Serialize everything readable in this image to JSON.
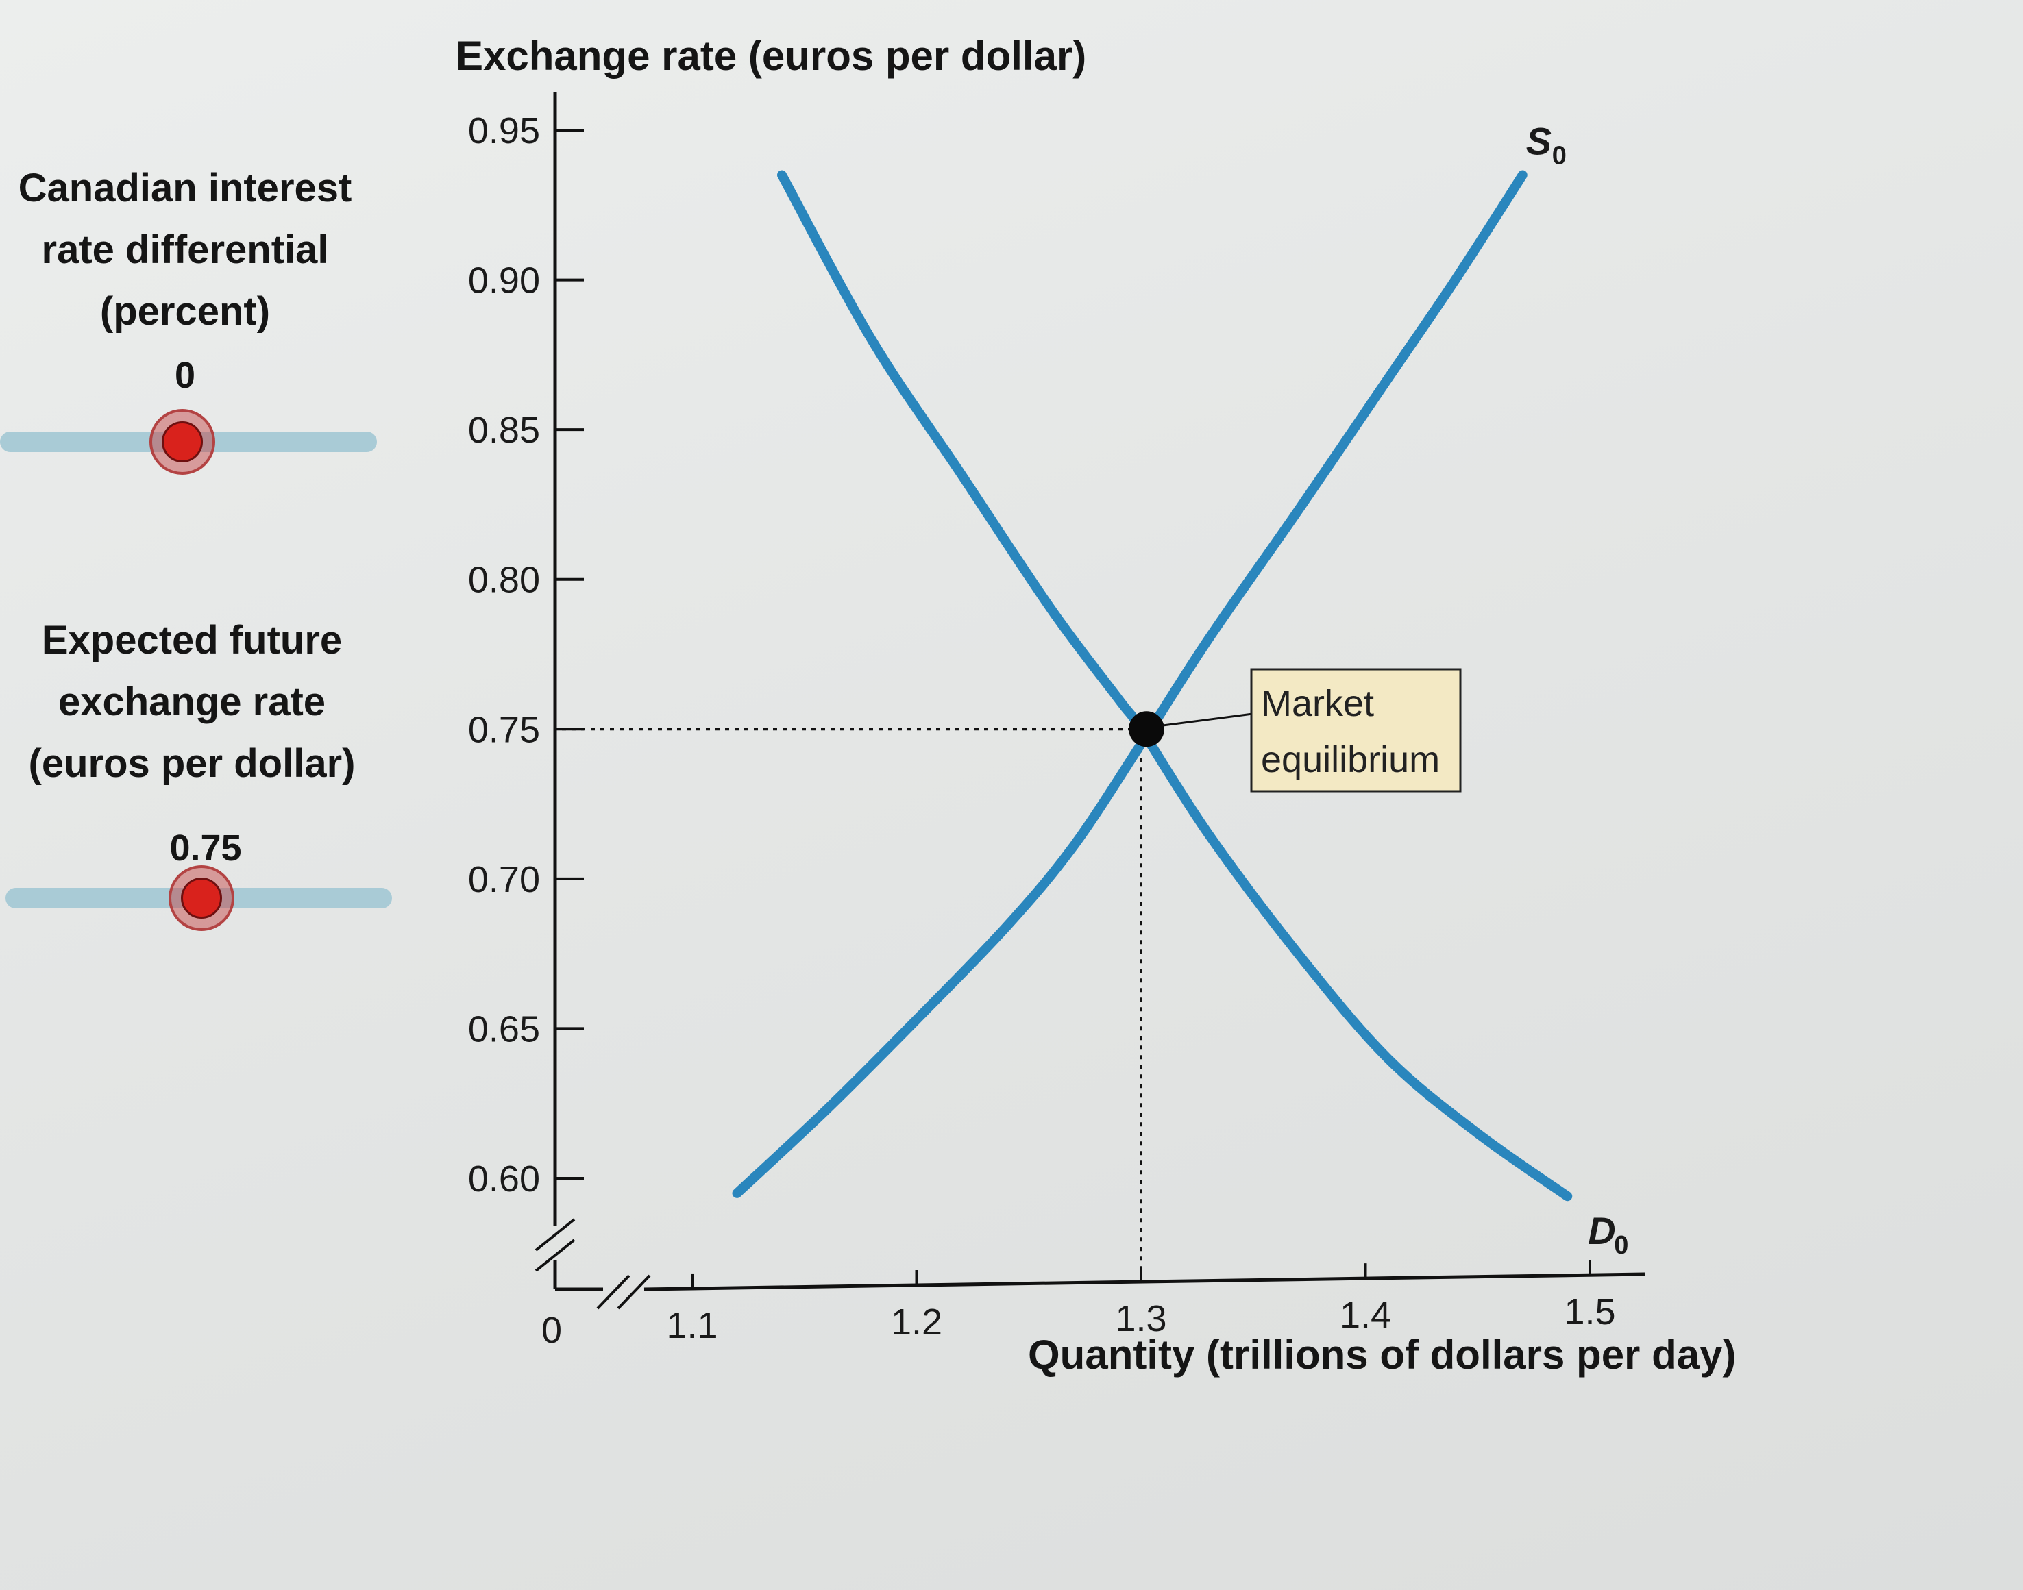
{
  "controls": {
    "interest": {
      "label_lines": [
        "Canadian interest",
        "rate differential",
        "(percent)"
      ],
      "value": "0"
    },
    "expected": {
      "label_lines": [
        "Expected future",
        "exchange rate",
        "(euros per dollar)"
      ],
      "value": "0.75"
    }
  },
  "chart_data": {
    "type": "line",
    "ylabel": "Exchange rate (euros per dollar)",
    "xlabel": "Quantity (trillions of dollars per day)",
    "y_ticks": [
      0.6,
      0.65,
      0.7,
      0.75,
      0.8,
      0.85,
      0.9,
      0.95
    ],
    "y_tick_labels": [
      "0.60",
      "0.65",
      "0.70",
      "0.75",
      "0.80",
      "0.85",
      "0.90",
      "0.95"
    ],
    "x_ticks": [
      1.1,
      1.2,
      1.3,
      1.4,
      1.5
    ],
    "x_tick_labels": [
      "1.1",
      "1.2",
      "1.3",
      "1.4",
      "1.5"
    ],
    "origin_label": "0",
    "ylim": [
      0.6,
      0.95
    ],
    "xlim": [
      1.1,
      1.5
    ],
    "axis_breaks": true,
    "grid": false,
    "curve_color": "#2a86bd",
    "series": [
      {
        "name": "S",
        "subscript": "0",
        "x": [
          1.12,
          1.16,
          1.2,
          1.24,
          1.27,
          1.3,
          1.33,
          1.37,
          1.41,
          1.44,
          1.47
        ],
        "y": [
          0.595,
          0.623,
          0.653,
          0.684,
          0.711,
          0.745,
          0.78,
          0.823,
          0.867,
          0.9,
          0.935
        ]
      },
      {
        "name": "D",
        "subscript": "0",
        "x": [
          1.14,
          1.18,
          1.22,
          1.26,
          1.29,
          1.3,
          1.33,
          1.37,
          1.41,
          1.45,
          1.49
        ],
        "y": [
          0.935,
          0.88,
          0.835,
          0.79,
          0.76,
          0.75,
          0.715,
          0.675,
          0.64,
          0.615,
          0.594
        ]
      }
    ],
    "equilibrium": {
      "x": 1.3,
      "y": 0.75,
      "label_lines": [
        "Market",
        "equilibrium"
      ]
    }
  }
}
